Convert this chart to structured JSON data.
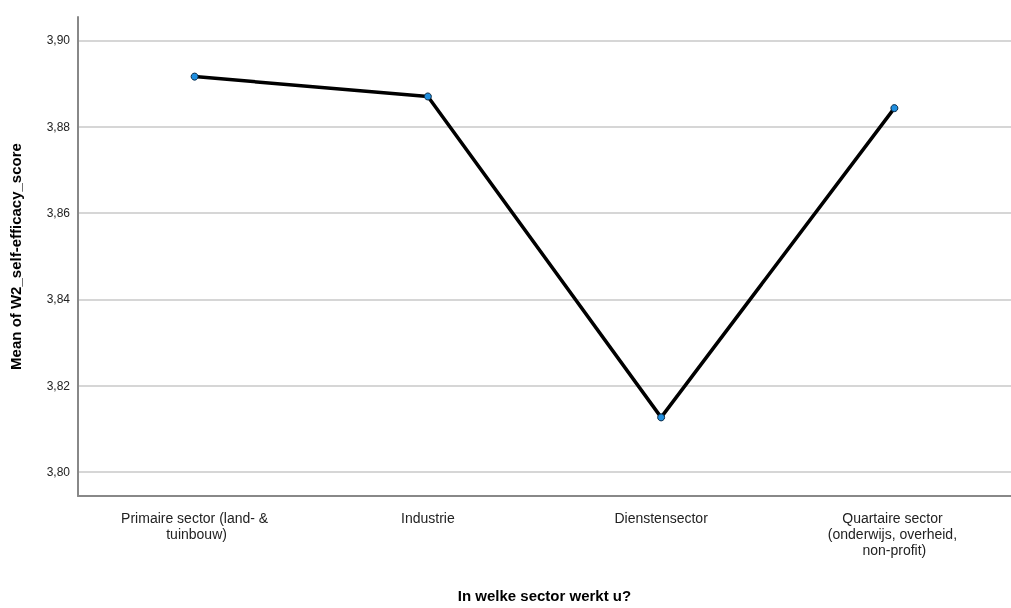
{
  "chart_data": {
    "type": "line",
    "xlabel": "In welke sector werkt u?",
    "ylabel": "Mean of W2_self-efficacy_score",
    "categories": [
      "Primaire sector (land- & tuinbouw)",
      "Industrie",
      "Dienstensector",
      "Quartaire sector (onderwijs, overheid, non-profit)"
    ],
    "series": [
      {
        "color": "#000000",
        "values": [
          3.8916,
          3.887,
          3.8127,
          3.8843
        ]
      }
    ],
    "ylim": [
      3.7945,
      3.9054
    ],
    "yticks": [
      {
        "value": 3.8,
        "label": "3,80"
      },
      {
        "value": 3.82,
        "label": "3,82"
      },
      {
        "value": 3.84,
        "label": "3,84"
      },
      {
        "value": 3.86,
        "label": "3,86"
      },
      {
        "value": 3.88,
        "label": "3,88"
      },
      {
        "value": 3.9,
        "label": "3,90"
      }
    ],
    "grid": "y",
    "marker": "circle",
    "line_style": "solid"
  }
}
